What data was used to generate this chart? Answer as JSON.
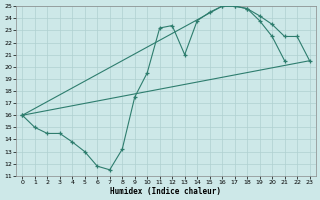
{
  "xlabel": "Humidex (Indice chaleur)",
  "xlim": [
    -0.5,
    23.5
  ],
  "ylim": [
    11,
    25
  ],
  "background_color": "#cde8e8",
  "grid_color": "#b0d0d0",
  "line_color": "#2e7d6e",
  "curve1_x": [
    0,
    1,
    2,
    3,
    4,
    5,
    6,
    7,
    8,
    9,
    10,
    11,
    12,
    13,
    14,
    15,
    16,
    17,
    18,
    19,
    20,
    21
  ],
  "curve1_y": [
    16.0,
    15.0,
    14.5,
    14.5,
    13.8,
    13.0,
    11.8,
    11.5,
    13.2,
    17.5,
    19.5,
    23.2,
    23.4,
    21.0,
    23.8,
    24.5,
    25.0,
    25.0,
    24.8,
    23.8,
    22.5,
    20.5
  ],
  "curve2_x": [
    0,
    16,
    17,
    18,
    19,
    20,
    21,
    22,
    23
  ],
  "curve2_y": [
    16.0,
    25.0,
    25.0,
    24.8,
    24.2,
    23.5,
    22.5,
    22.5,
    20.5
  ],
  "curve3_x": [
    0,
    23
  ],
  "curve3_y": [
    16.0,
    20.5
  ]
}
